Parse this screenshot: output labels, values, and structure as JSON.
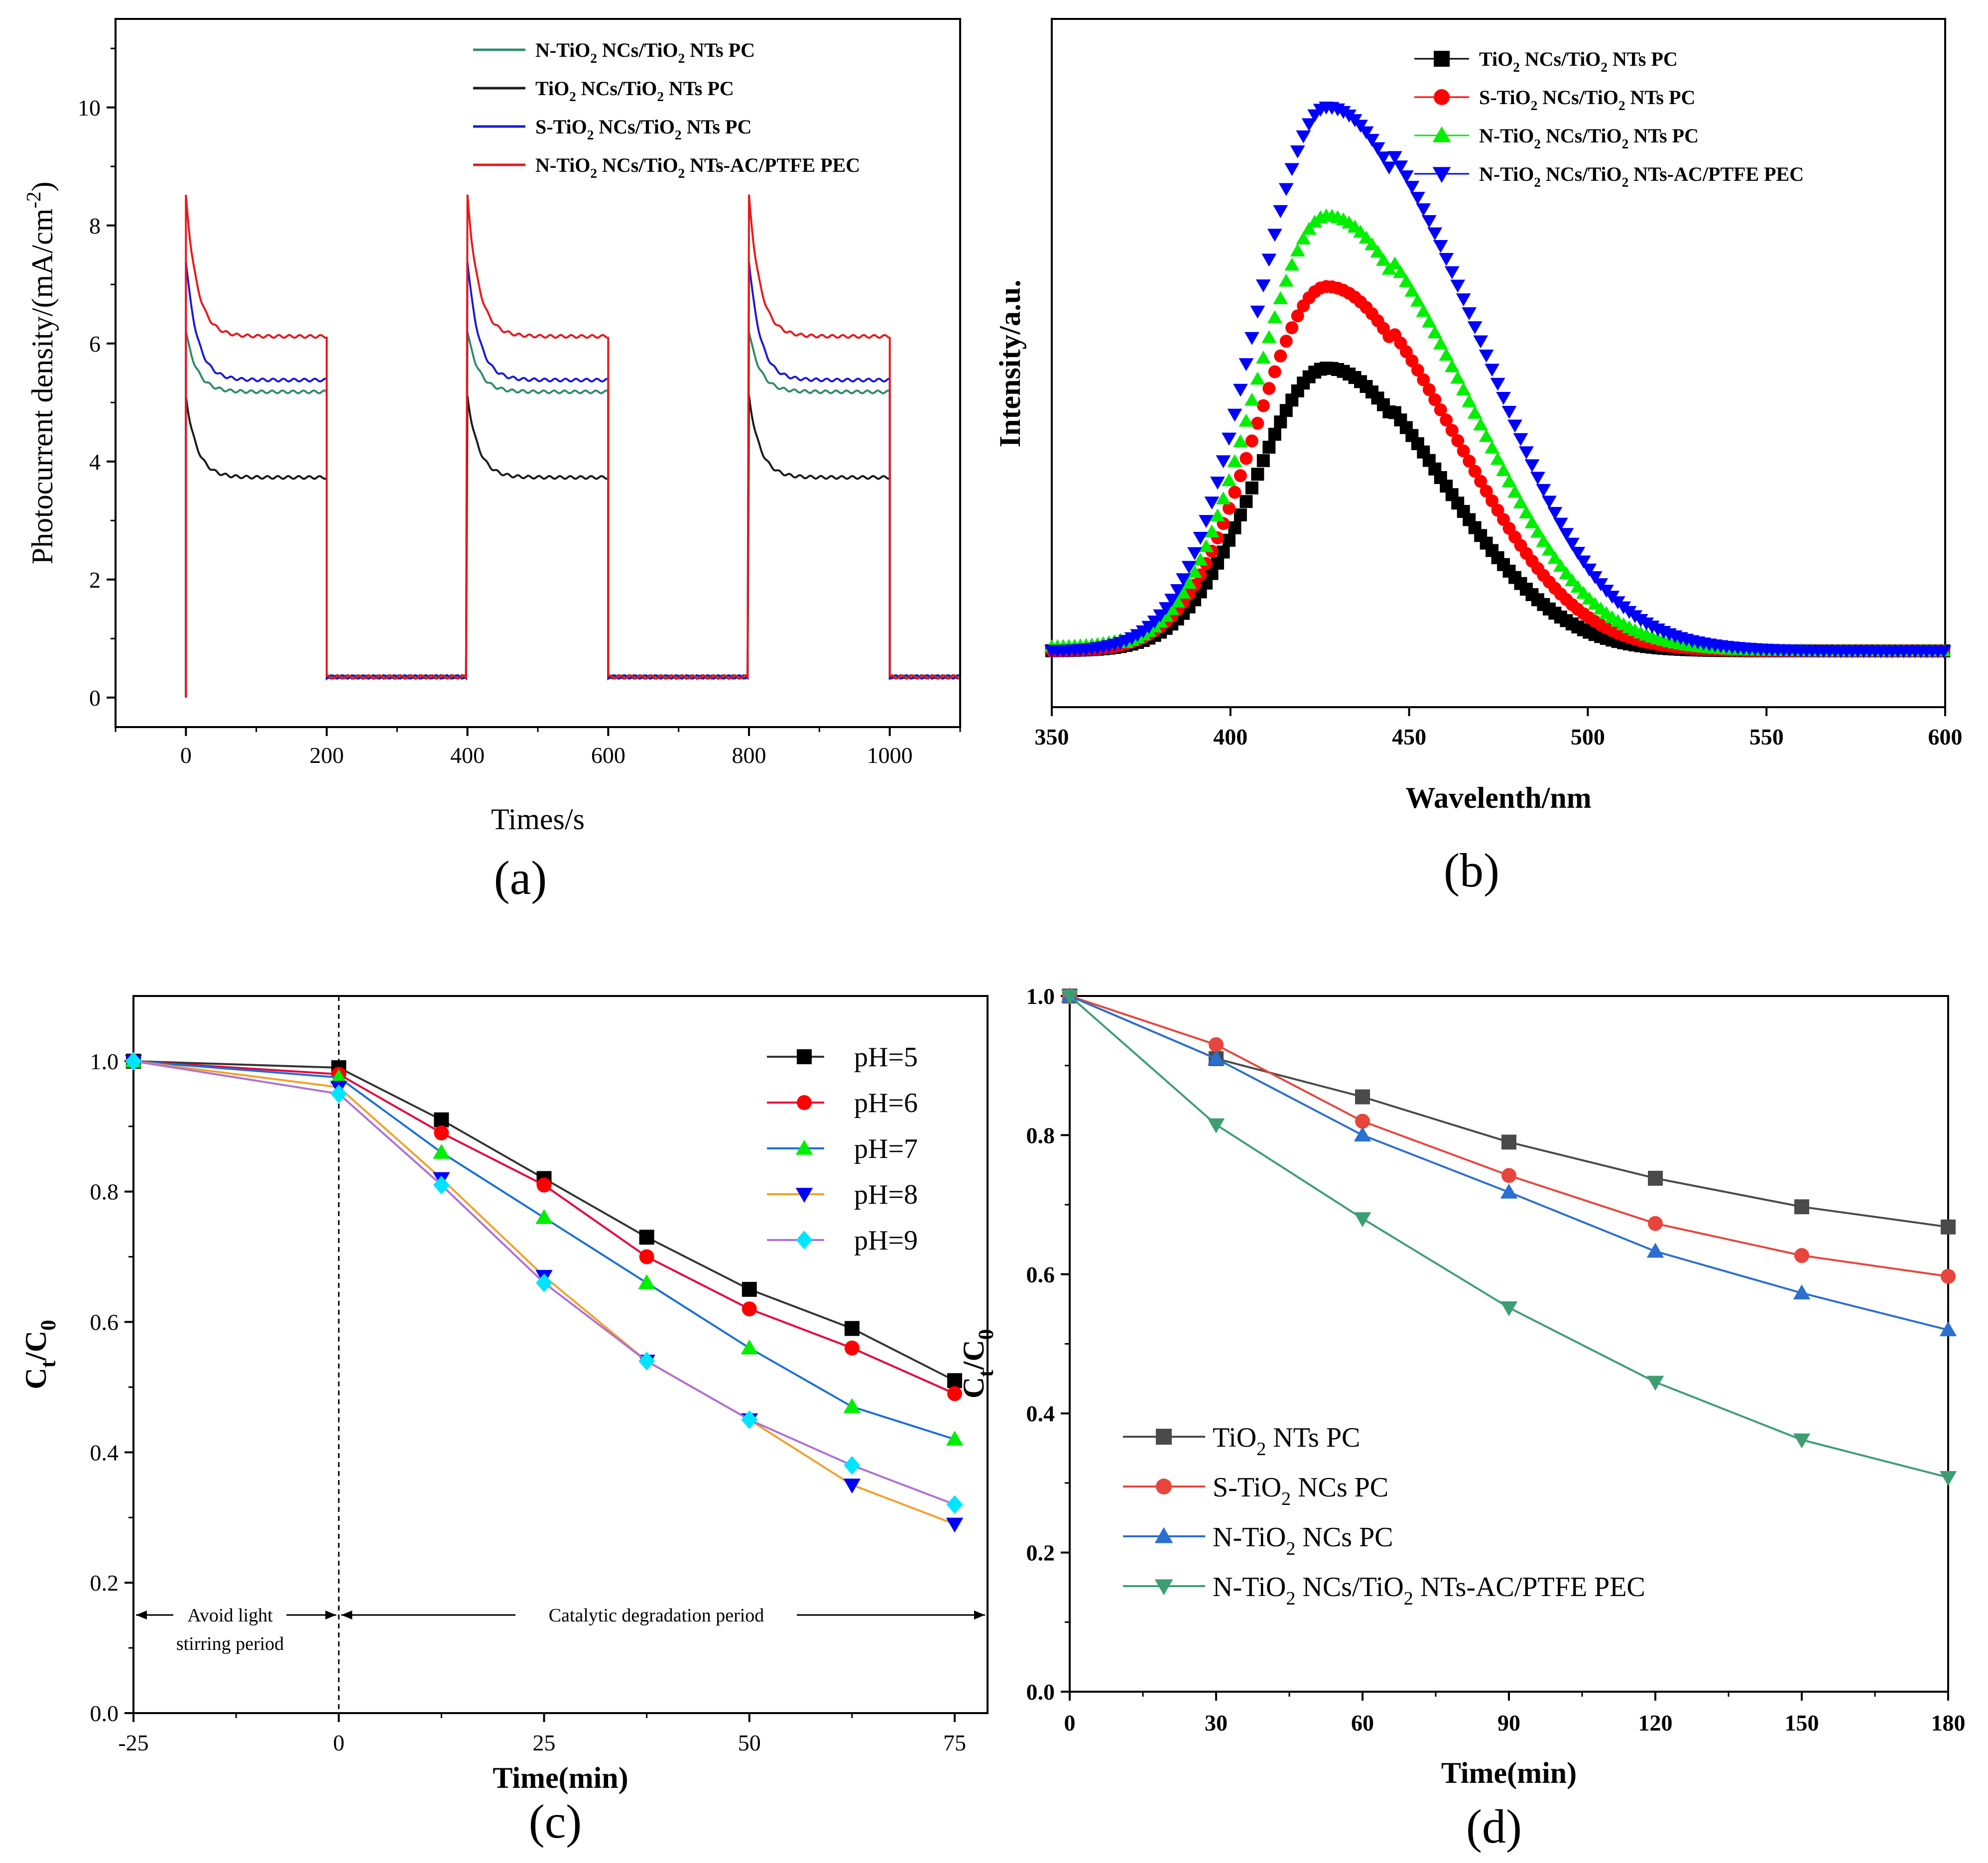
{
  "figure_labels": {
    "a": "(a)",
    "b": "(b)",
    "c": "(c)",
    "d": "(d)"
  },
  "chart_data": [
    {
      "id": "a",
      "type": "line",
      "title": "",
      "xlabel": "Times/s",
      "ylabel": "Photocurrent density/(mA/cm<sup>-2</sup>)",
      "xlim": [
        -100,
        1100
      ],
      "ylim": [
        -0.5,
        11.5
      ],
      "xticks": [
        0,
        200,
        400,
        600,
        800,
        1000
      ],
      "yticks": [
        0,
        2,
        4,
        6,
        8,
        10
      ],
      "on_off_cycles": [
        [
          0,
          200
        ],
        [
          400,
          600
        ],
        [
          800,
          1000
        ]
      ],
      "dark_current": 0.35,
      "series": [
        {
          "name": "N-TiO<sub>2</sub> NCs/TiO<sub>2</sub> NTs PC",
          "color": "#2e8b6e",
          "peak": 6.2,
          "steady": 5.18
        },
        {
          "name": "TiO<sub>2</sub> NCs/TiO<sub>2</sub> NTs PC",
          "color": "#1a1a1a",
          "peak": 5.1,
          "steady": 3.73
        },
        {
          "name": "S-TiO<sub>2</sub> NCs/TiO<sub>2</sub> NTs PC",
          "color": "#1a1ad6",
          "peak": 7.4,
          "steady": 5.38
        },
        {
          "name": "N-TiO<sub>2</sub> NCs/TiO<sub>2</sub> NTs-AC/PTFE PEC",
          "color": "#e8191c",
          "peak": 8.5,
          "steady": 6.12
        }
      ]
    },
    {
      "id": "b",
      "type": "scatter",
      "xlabel": "Wavelenth/nm",
      "ylabel": "Intensity/a.u.",
      "xlim": [
        350,
        600
      ],
      "ylim": [
        0,
        1
      ],
      "xticks": [
        350,
        400,
        450,
        500,
        550,
        600
      ],
      "peak_wavelength": 427,
      "baseline": 0.1,
      "series": [
        {
          "name": "TiO<sub>2</sub> NCs/TiO<sub>2</sub> NTs PC",
          "color": "#000000",
          "marker": "square",
          "peak": 0.52
        },
        {
          "name": "S-TiO<sub>2</sub> NCs/TiO<sub>2</sub> NTs PC",
          "color": "#ff0000",
          "marker": "circle",
          "peak": 0.67
        },
        {
          "name": "N-TiO<sub>2</sub> NCs/TiO<sub>2</sub> NTs PC",
          "color": "#00ee00",
          "marker": "triangle-up",
          "peak": 0.8
        },
        {
          "name": "N-TiO<sub>2</sub> NCs/TiO<sub>2</sub> NTs-AC/PTFE PEC",
          "color": "#0000ff",
          "marker": "triangle-down",
          "peak": 1.0
        }
      ]
    },
    {
      "id": "c",
      "type": "line",
      "xlabel": "Time(min)",
      "ylabel": "C<sub>t</sub>/C<sub>0</sub>",
      "xlim": [
        -25,
        79
      ],
      "ylim": [
        0,
        1.1
      ],
      "xticks": [
        -25,
        0,
        25,
        50,
        75
      ],
      "yticks": [
        0.0,
        0.2,
        0.4,
        0.6,
        0.8,
        1.0
      ],
      "x": [
        -25,
        0,
        12.5,
        25,
        37.5,
        50,
        62.5,
        75
      ],
      "series": [
        {
          "name": "pH=5",
          "color": "#000000",
          "line": "#333333",
          "marker": "square",
          "values": [
            1.0,
            0.99,
            0.91,
            0.82,
            0.73,
            0.65,
            0.59,
            0.51
          ]
        },
        {
          "name": "pH=6",
          "color": "#ff0000",
          "line": "#e8003c",
          "marker": "circle",
          "values": [
            1.0,
            0.98,
            0.89,
            0.81,
            0.7,
            0.62,
            0.56,
            0.49
          ]
        },
        {
          "name": "pH=7",
          "color": "#00ee00",
          "line": "#1a6fd6",
          "marker": "triangle-up",
          "values": [
            1.0,
            0.975,
            0.86,
            0.76,
            0.66,
            0.56,
            0.47,
            0.42
          ]
        },
        {
          "name": "pH=8",
          "color": "#0000ff",
          "line": "#f2a02a",
          "marker": "triangle-down",
          "values": [
            1.0,
            0.96,
            0.82,
            0.67,
            0.54,
            0.45,
            0.35,
            0.29
          ]
        },
        {
          "name": "pH=9",
          "color": "#00e5ff",
          "line": "#b06fd6",
          "marker": "diamond",
          "values": [
            1.0,
            0.95,
            0.81,
            0.66,
            0.54,
            0.45,
            0.38,
            0.32
          ]
        }
      ],
      "annotations": {
        "avoid": [
          "Avoid light",
          "stirring period"
        ],
        "catalytic": "Catalytic degradation period"
      }
    },
    {
      "id": "d",
      "type": "line",
      "xlabel": "Time(min)",
      "ylabel": "C<sub>t</sub>/C<sub>0</sub>",
      "xlim": [
        0,
        180
      ],
      "ylim": [
        0,
        1.0
      ],
      "xticks": [
        0,
        30,
        60,
        90,
        120,
        150,
        180
      ],
      "yticks": [
        0.0,
        0.2,
        0.4,
        0.6,
        0.8,
        1.0
      ],
      "x": [
        0,
        30,
        60,
        90,
        120,
        150,
        180
      ],
      "series": [
        {
          "name": "TiO<sub>2</sub> NTs PC",
          "color": "#4a4a4a",
          "marker": "square",
          "values": [
            1.0,
            0.91,
            0.855,
            0.79,
            0.738,
            0.697,
            0.668
          ]
        },
        {
          "name": "S-TiO<sub>2</sub> NCs PC",
          "color": "#e8453c",
          "marker": "circle",
          "values": [
            1.0,
            0.93,
            0.82,
            0.742,
            0.673,
            0.627,
            0.597
          ]
        },
        {
          "name": "N-TiO<sub>2</sub> NCs PC",
          "color": "#2b6fcf",
          "marker": "triangle-up",
          "values": [
            1.0,
            0.91,
            0.8,
            0.718,
            0.633,
            0.573,
            0.52
          ]
        },
        {
          "name": "N-TiO<sub>2</sub> NCs/TiO<sub>2</sub> NTs-AC/PTFE PEC",
          "color": "#3d9e73",
          "marker": "triangle-down",
          "values": [
            1.0,
            0.815,
            0.68,
            0.552,
            0.445,
            0.362,
            0.308
          ]
        }
      ]
    }
  ]
}
